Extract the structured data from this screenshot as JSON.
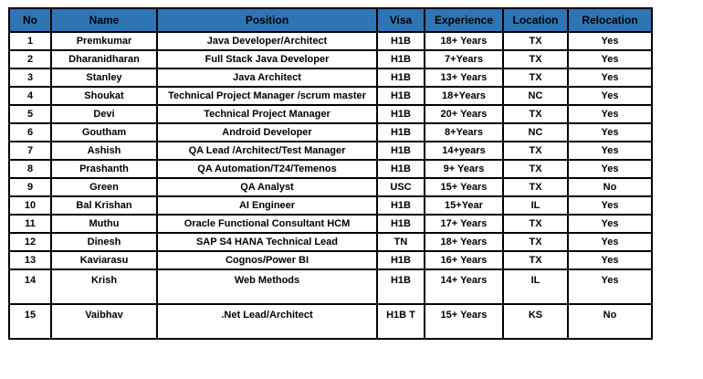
{
  "colors": {
    "header_bg": "#2e75b6",
    "header_text": "#000000",
    "border": "#000000",
    "row_bg": "#ffffff"
  },
  "table": {
    "headers": [
      "No",
      "Name",
      "Position",
      "Visa",
      "Experience",
      "Location",
      "Relocation"
    ],
    "column_keys": [
      "no",
      "name",
      "position",
      "visa",
      "experience",
      "location",
      "relocation"
    ],
    "rows": [
      [
        "1",
        "Premkumar",
        "Java Developer/Architect",
        "H1B",
        "18+ Years",
        "TX",
        "Yes"
      ],
      [
        "2",
        "Dharanidharan",
        "Full Stack Java Developer",
        "H1B",
        "7+Years",
        "TX",
        "Yes"
      ],
      [
        "3",
        "Stanley",
        "Java Architect",
        "H1B",
        "13+ Years",
        "TX",
        "Yes"
      ],
      [
        "4",
        "Shoukat",
        "Technical Project Manager /scrum master",
        "H1B",
        "18+Years",
        "NC",
        "Yes"
      ],
      [
        "5",
        "Devi",
        "Technical Project Manager",
        "H1B",
        "20+ Years",
        "TX",
        "Yes"
      ],
      [
        "6",
        "Goutham",
        "Android Developer",
        "H1B",
        "8+Years",
        "NC",
        "Yes"
      ],
      [
        "7",
        "Ashish",
        "QA Lead /Architect/Test Manager",
        "H1B",
        "14+years",
        "TX",
        "Yes"
      ],
      [
        "8",
        "Prashanth",
        "QA Automation/T24/Temenos",
        "H1B",
        "9+ Years",
        "TX",
        "Yes"
      ],
      [
        "9",
        "Green",
        "QA Analyst",
        "USC",
        "15+ Years",
        "TX",
        "No"
      ],
      [
        "10",
        "Bal Krishan",
        "AI Engineer",
        "H1B",
        "15+Year",
        "IL",
        "Yes"
      ],
      [
        "11",
        "Muthu",
        "Oracle Functional Consultant HCM",
        "H1B",
        "17+ Years",
        "TX",
        "Yes"
      ],
      [
        "12",
        "Dinesh",
        "SAP S4 HANA Technical Lead",
        "TN",
        "18+ Years",
        "TX",
        "Yes"
      ],
      [
        "13",
        "Kaviarasu",
        "Cognos/Power BI",
        "H1B",
        "16+ Years",
        "TX",
        "Yes"
      ],
      [
        "14",
        "Krish",
        "Web Methods",
        "H1B",
        "14+ Years",
        "IL",
        "Yes"
      ],
      [
        "15",
        "Vaibhav",
        ".Net Lead/Architect",
        "H1B T",
        "15+ Years",
        "KS",
        "No"
      ]
    ],
    "tall_row_indexes": [
      13,
      14
    ]
  }
}
